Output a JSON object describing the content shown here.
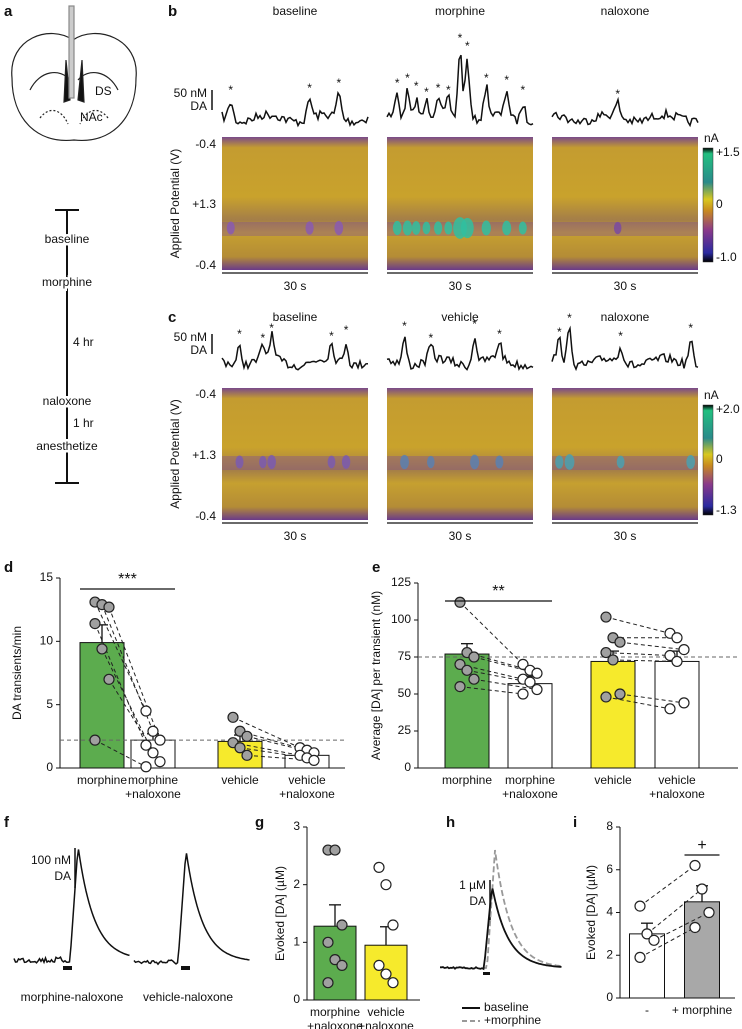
{
  "panels": {
    "a": {
      "label": "a",
      "regions": [
        "DS",
        "NAc"
      ],
      "timeline": [
        "baseline",
        "morphine",
        "4 hr",
        "naloxone",
        "1 hr",
        "anesthetize"
      ]
    },
    "b": {
      "label": "b",
      "conditions": [
        "baseline",
        "morphine",
        "naloxone"
      ],
      "scale_bar": [
        "50 nM",
        "DA"
      ],
      "peak_marker": "*",
      "ylabel": "Applied Potential (V)",
      "potential_ticks": [
        "-0.4",
        "+1.3",
        "-0.4"
      ],
      "time_bar": "30 s",
      "colorbar_unit": "nA",
      "colorbar_ticks": [
        "+1.5",
        "0",
        "-1.0"
      ]
    },
    "c": {
      "label": "c",
      "conditions": [
        "baseline",
        "vehicle",
        "naloxone"
      ],
      "scale_bar": [
        "50 nM",
        "DA"
      ],
      "peak_marker": "*",
      "ylabel": "Applied Potential (V)",
      "potential_ticks": [
        "-0.4",
        "+1.3",
        "-0.4"
      ],
      "time_bar": "30 s",
      "colorbar_unit": "nA",
      "colorbar_ticks": [
        "+2.0",
        "0",
        "-1.3"
      ]
    },
    "f": {
      "label": "f",
      "scale_bar": [
        "100 nM",
        "DA"
      ],
      "traces": [
        "morphine-naloxone",
        "vehicle-naloxone"
      ]
    },
    "h": {
      "label": "h",
      "scale_bar": [
        "1 µM",
        "DA"
      ],
      "legend": [
        "baseline",
        "+morphine"
      ]
    }
  },
  "chart_data": [
    {
      "type": "bar",
      "panel": "d",
      "ylabel": "DA transients/min",
      "categories": [
        [
          "morphine"
        ],
        [
          "morphine",
          "+naloxone"
        ],
        [
          "vehicle"
        ],
        [
          "vehicle",
          "+naloxone"
        ]
      ],
      "values": [
        9.9,
        2.2,
        2.1,
        1.0
      ],
      "errors": [
        1.4,
        0.5,
        0.5,
        0.3
      ],
      "colors": [
        "#5cac4e",
        "#ffffff",
        "#f6ea2c",
        "#ffffff"
      ],
      "point_colors": [
        "#a0a0a0",
        "#ffffff",
        "#a0a0a0",
        "#ffffff"
      ],
      "points": [
        [
          13.1,
          12.9,
          12.7,
          11.4,
          9.4,
          7.0,
          2.2
        ],
        [
          4.5,
          2.9,
          2.2,
          1.8,
          1.2,
          0.5,
          0.1
        ],
        [
          4.0,
          2.9,
          2.5,
          2.0,
          1.6,
          1.0
        ],
        [
          1.6,
          1.4,
          1.2,
          1.0,
          0.8,
          0.6
        ]
      ],
      "paired": true,
      "ref_line": 2.2,
      "significance": {
        "text": "***",
        "bars": [
          0,
          1
        ]
      },
      "ylim": [
        0,
        15
      ],
      "yticks": [
        0,
        5,
        10,
        15
      ]
    },
    {
      "type": "bar",
      "panel": "e",
      "ylabel": "Average [DA] per transient (nM)",
      "categories": [
        [
          "morphine"
        ],
        [
          "morphine",
          "+naloxone"
        ],
        [
          "vehicle"
        ],
        [
          "vehicle",
          "+naloxone"
        ]
      ],
      "values": [
        77,
        57,
        72,
        72
      ],
      "errors": [
        7,
        5,
        7,
        7
      ],
      "colors": [
        "#5cac4e",
        "#ffffff",
        "#f6ea2c",
        "#ffffff"
      ],
      "point_colors": [
        "#a0a0a0",
        "#ffffff",
        "#a0a0a0",
        "#ffffff"
      ],
      "points": [
        [
          112,
          78,
          75,
          70,
          66,
          60,
          55
        ],
        [
          70,
          66,
          64,
          60,
          58,
          53,
          50
        ],
        [
          102,
          88,
          85,
          78,
          73,
          50,
          48
        ],
        [
          91,
          88,
          80,
          76,
          72,
          44,
          40
        ]
      ],
      "paired": true,
      "ref_line": 75,
      "significance": {
        "text": "**",
        "bars": [
          0,
          1
        ]
      },
      "ylim": [
        0,
        125
      ],
      "yticks": [
        0,
        25,
        50,
        75,
        100,
        125
      ]
    },
    {
      "type": "bar",
      "panel": "g",
      "ylabel": "Evoked [DA] (µM)",
      "categories": [
        [
          "morphine",
          "+naloxone"
        ],
        [
          "vehicle",
          "+naloxone"
        ]
      ],
      "values": [
        1.28,
        0.95
      ],
      "errors": [
        0.37,
        0.32
      ],
      "colors": [
        "#5cac4e",
        "#f6ea2c"
      ],
      "point_colors": [
        "#a0a0a0",
        "#ffffff"
      ],
      "points": [
        [
          2.6,
          2.6,
          1.3,
          1.0,
          0.7,
          0.6,
          0.3
        ],
        [
          2.3,
          2.0,
          1.3,
          0.6,
          0.45,
          0.3
        ]
      ],
      "paired": false,
      "ylim": [
        0,
        3
      ],
      "yticks": [
        0,
        1,
        2,
        3
      ]
    },
    {
      "type": "bar",
      "panel": "i",
      "ylabel": "Evoked [DA] (µM)",
      "categories": [
        [
          "-"
        ],
        [
          "+ morphine"
        ]
      ],
      "values": [
        3.0,
        4.5
      ],
      "errors": [
        0.5,
        0.75
      ],
      "colors": [
        "#ffffff",
        "#a8a8a8"
      ],
      "point_colors": [
        "#ffffff",
        "#ffffff"
      ],
      "points": [
        [
          4.3,
          3.0,
          2.7,
          1.9
        ],
        [
          6.2,
          5.1,
          4.0,
          3.3
        ]
      ],
      "paired": true,
      "significance": {
        "text": "+",
        "bars": [
          1,
          1
        ]
      },
      "ylim": [
        0,
        8
      ],
      "yticks": [
        0,
        2,
        4,
        6,
        8
      ]
    }
  ]
}
